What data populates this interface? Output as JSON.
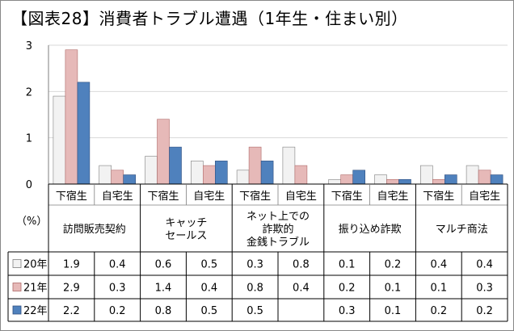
{
  "chart_data": {
    "type": "bar",
    "title": "【図表28】消費者トラブル遭遇（1年生・住まい別）",
    "ylabel": "（%）",
    "ylim": [
      0,
      3
    ],
    "yticks": [
      "0",
      "1",
      "2",
      "3"
    ],
    "grid": true,
    "legend_position": "table-left",
    "groups": [
      {
        "label": "訪問販売契約",
        "label_lines": [
          "訪問販売契約"
        ]
      },
      {
        "label": "キャッチセールス",
        "label_lines": [
          "キャッチ",
          "セールス"
        ]
      },
      {
        "label": "ネット上での詐欺的金銭トラブル",
        "label_lines": [
          "ネット上での",
          "詐欺的",
          "金銭トラブル"
        ]
      },
      {
        "label": "振り込め詐欺",
        "label_lines": [
          "振り込め詐欺"
        ]
      },
      {
        "label": "マルチ商法",
        "label_lines": [
          "マルチ商法"
        ]
      }
    ],
    "subcategories": [
      "下宿生",
      "自宅生"
    ],
    "categories": [
      "訪問販売契約-下宿生",
      "訪問販売契約-自宅生",
      "キャッチセールス-下宿生",
      "キャッチセールス-自宅生",
      "ネット上での詐欺的金銭トラブル-下宿生",
      "ネット上での詐欺的金銭トラブル-自宅生",
      "振り込め詐欺-下宿生",
      "振り込め詐欺-自宅生",
      "マルチ商法-下宿生",
      "マルチ商法-自宅生"
    ],
    "series": [
      {
        "name": "20年",
        "color": "#f2f2f2",
        "stroke": "#7f7f7f",
        "values": [
          1.9,
          0.4,
          0.6,
          0.5,
          0.3,
          0.8,
          0.1,
          0.2,
          0.4,
          0.4
        ],
        "labels": [
          "1.9",
          "0.4",
          "0.6",
          "0.5",
          "0.3",
          "0.8",
          "0.1",
          "0.2",
          "0.4",
          "0.4"
        ]
      },
      {
        "name": "21年",
        "color": "#e6b9b8",
        "stroke": "#b06a68",
        "values": [
          2.9,
          0.3,
          1.4,
          0.4,
          0.8,
          0.4,
          0.2,
          0.1,
          0.1,
          0.3
        ],
        "labels": [
          "2.9",
          "0.3",
          "1.4",
          "0.4",
          "0.8",
          "0.4",
          "0.2",
          "0.1",
          "0.1",
          "0.3"
        ]
      },
      {
        "name": "22年",
        "color": "#4f81bd",
        "stroke": "#2f4f7f",
        "values": [
          2.2,
          0.2,
          0.8,
          0.5,
          0.5,
          null,
          0.3,
          0.1,
          0.2,
          0.2
        ],
        "labels": [
          "2.2",
          "0.2",
          "0.8",
          "0.5",
          "0.5",
          "",
          "0.3",
          "0.1",
          "0.2",
          "0.2"
        ]
      }
    ]
  }
}
